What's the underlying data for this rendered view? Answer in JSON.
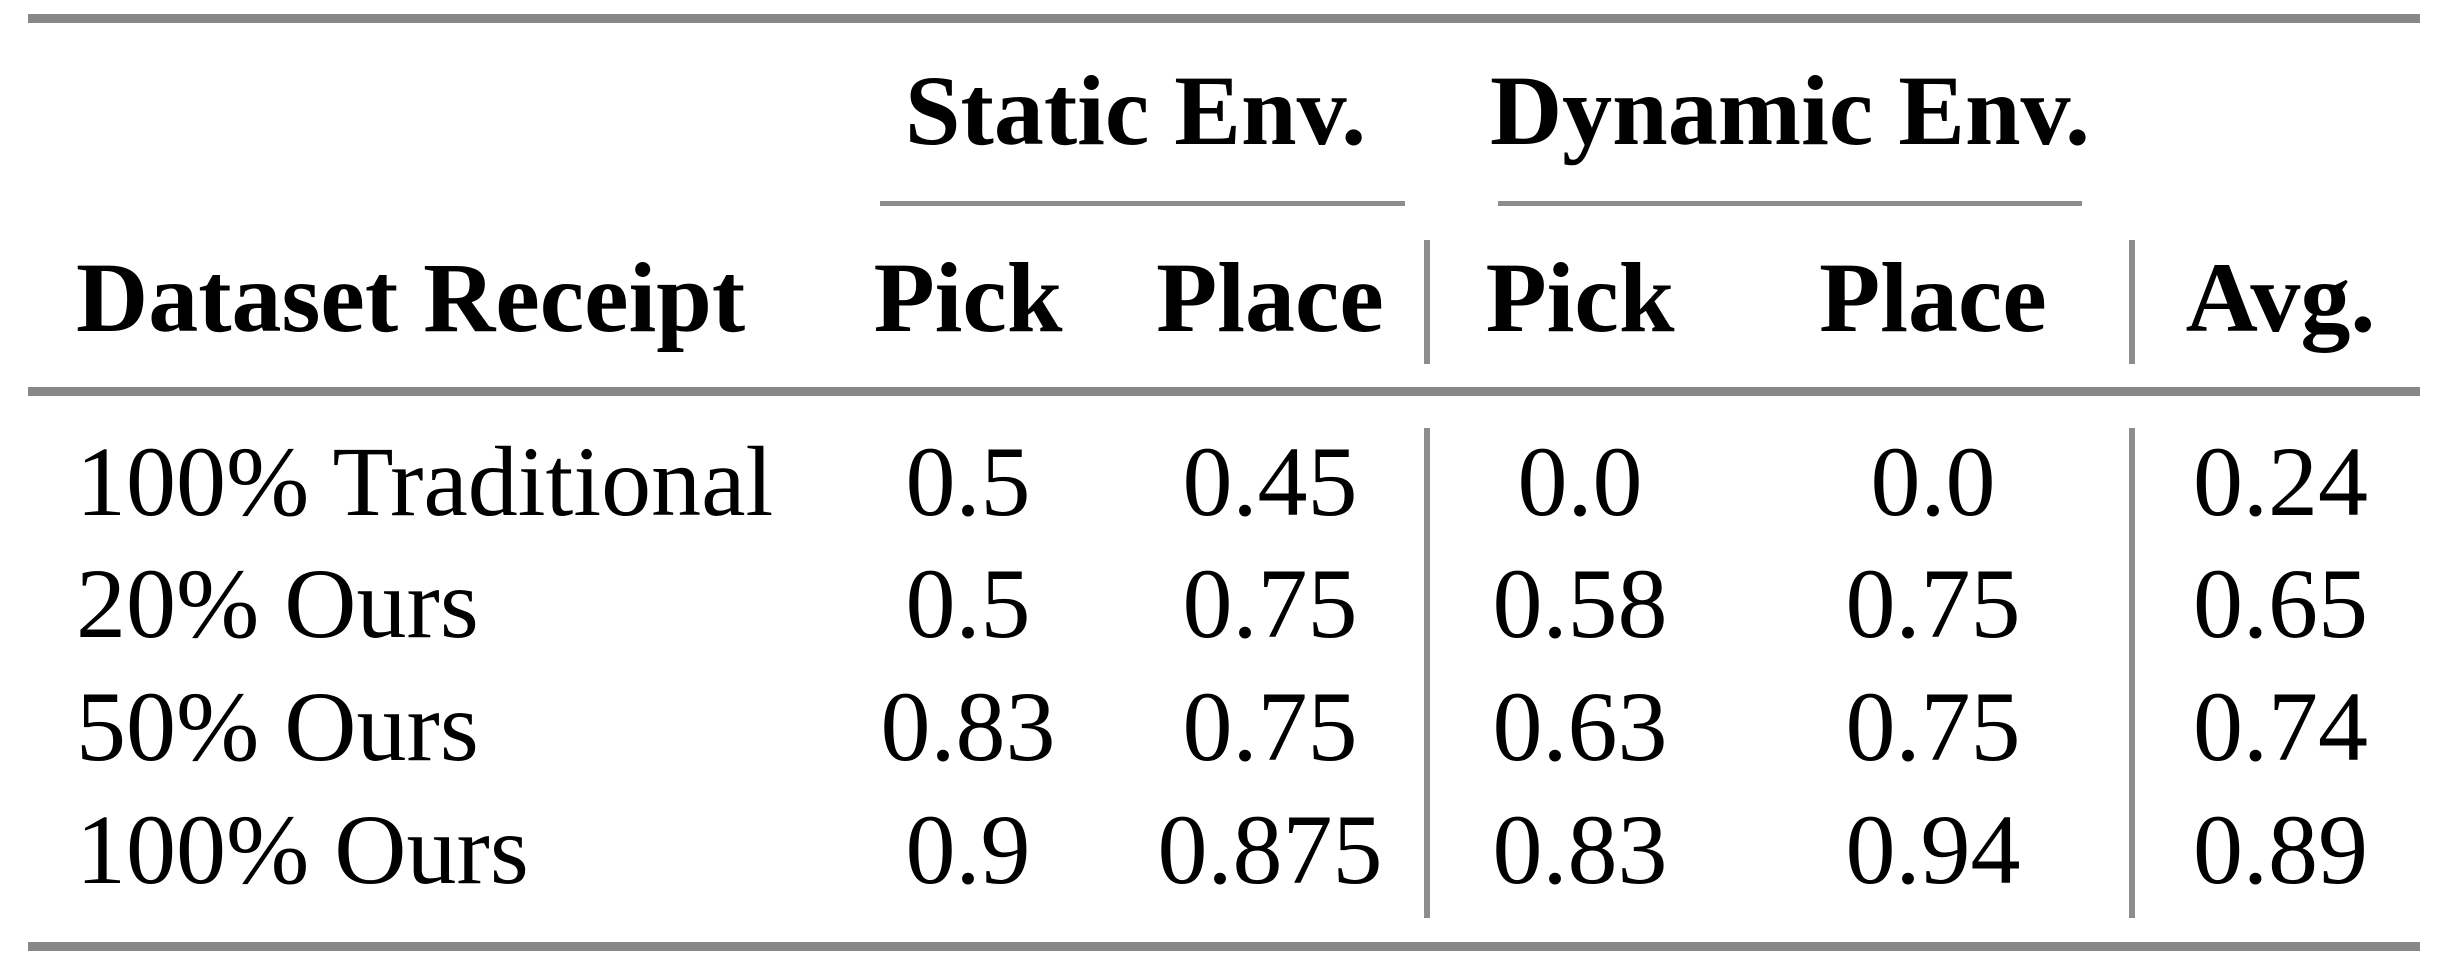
{
  "table": {
    "groups": [
      {
        "label": "Static Env."
      },
      {
        "label": "Dynamic Env."
      }
    ],
    "headers": {
      "dataset": "Dataset Receipt",
      "static_pick": "Pick",
      "static_place": "Place",
      "dynamic_pick": "Pick",
      "dynamic_place": "Place",
      "avg": "Avg."
    },
    "rows": [
      {
        "label": "100% Traditional",
        "static_pick": "0.5",
        "static_place": "0.45",
        "dynamic_pick": "0.0",
        "dynamic_place": "0.0",
        "avg": "0.24"
      },
      {
        "label": "20% Ours",
        "static_pick": "0.5",
        "static_place": "0.75",
        "dynamic_pick": "0.58",
        "dynamic_place": "0.75",
        "avg": "0.65"
      },
      {
        "label": "50% Ours",
        "static_pick": "0.83",
        "static_place": "0.75",
        "dynamic_pick": "0.63",
        "dynamic_place": "0.75",
        "avg": "0.74"
      },
      {
        "label": "100% Ours",
        "static_pick": "0.9",
        "static_place": "0.875",
        "dynamic_pick": "0.83",
        "dynamic_place": "0.94",
        "avg": "0.89"
      }
    ]
  },
  "colors": {
    "rule_gray": "#878787",
    "text": "#000000",
    "background": "#ffffff"
  }
}
